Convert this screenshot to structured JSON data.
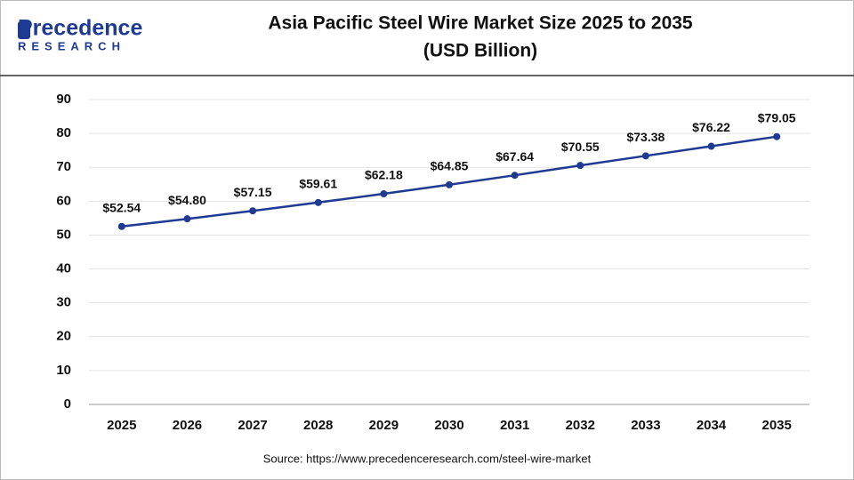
{
  "logo": {
    "name": "Precedence",
    "tagline": "RESEARCH"
  },
  "chart_data": {
    "type": "line",
    "title": "Asia Pacific Steel Wire Market Size 2025 to 2035",
    "subtitle": "(USD Billion)",
    "categories": [
      "2025",
      "2026",
      "2027",
      "2028",
      "2029",
      "2030",
      "2031",
      "2032",
      "2033",
      "2034",
      "2035"
    ],
    "values": [
      52.54,
      54.8,
      57.15,
      59.61,
      62.18,
      64.85,
      67.64,
      70.55,
      73.38,
      76.22,
      79.05
    ],
    "value_labels": [
      "$52.54",
      "$54.80",
      "$57.15",
      "$59.61",
      "$62.18",
      "$64.85",
      "$67.64",
      "$70.55",
      "$73.38",
      "$76.22",
      "$79.05"
    ],
    "color": "#1f3a93",
    "ylim": [
      0,
      90
    ],
    "yticks": [
      0,
      10,
      20,
      30,
      40,
      50,
      60,
      70,
      80,
      90
    ],
    "grid": true,
    "source": "Source: https://www.precedenceresearch.com/steel-wire-market"
  }
}
